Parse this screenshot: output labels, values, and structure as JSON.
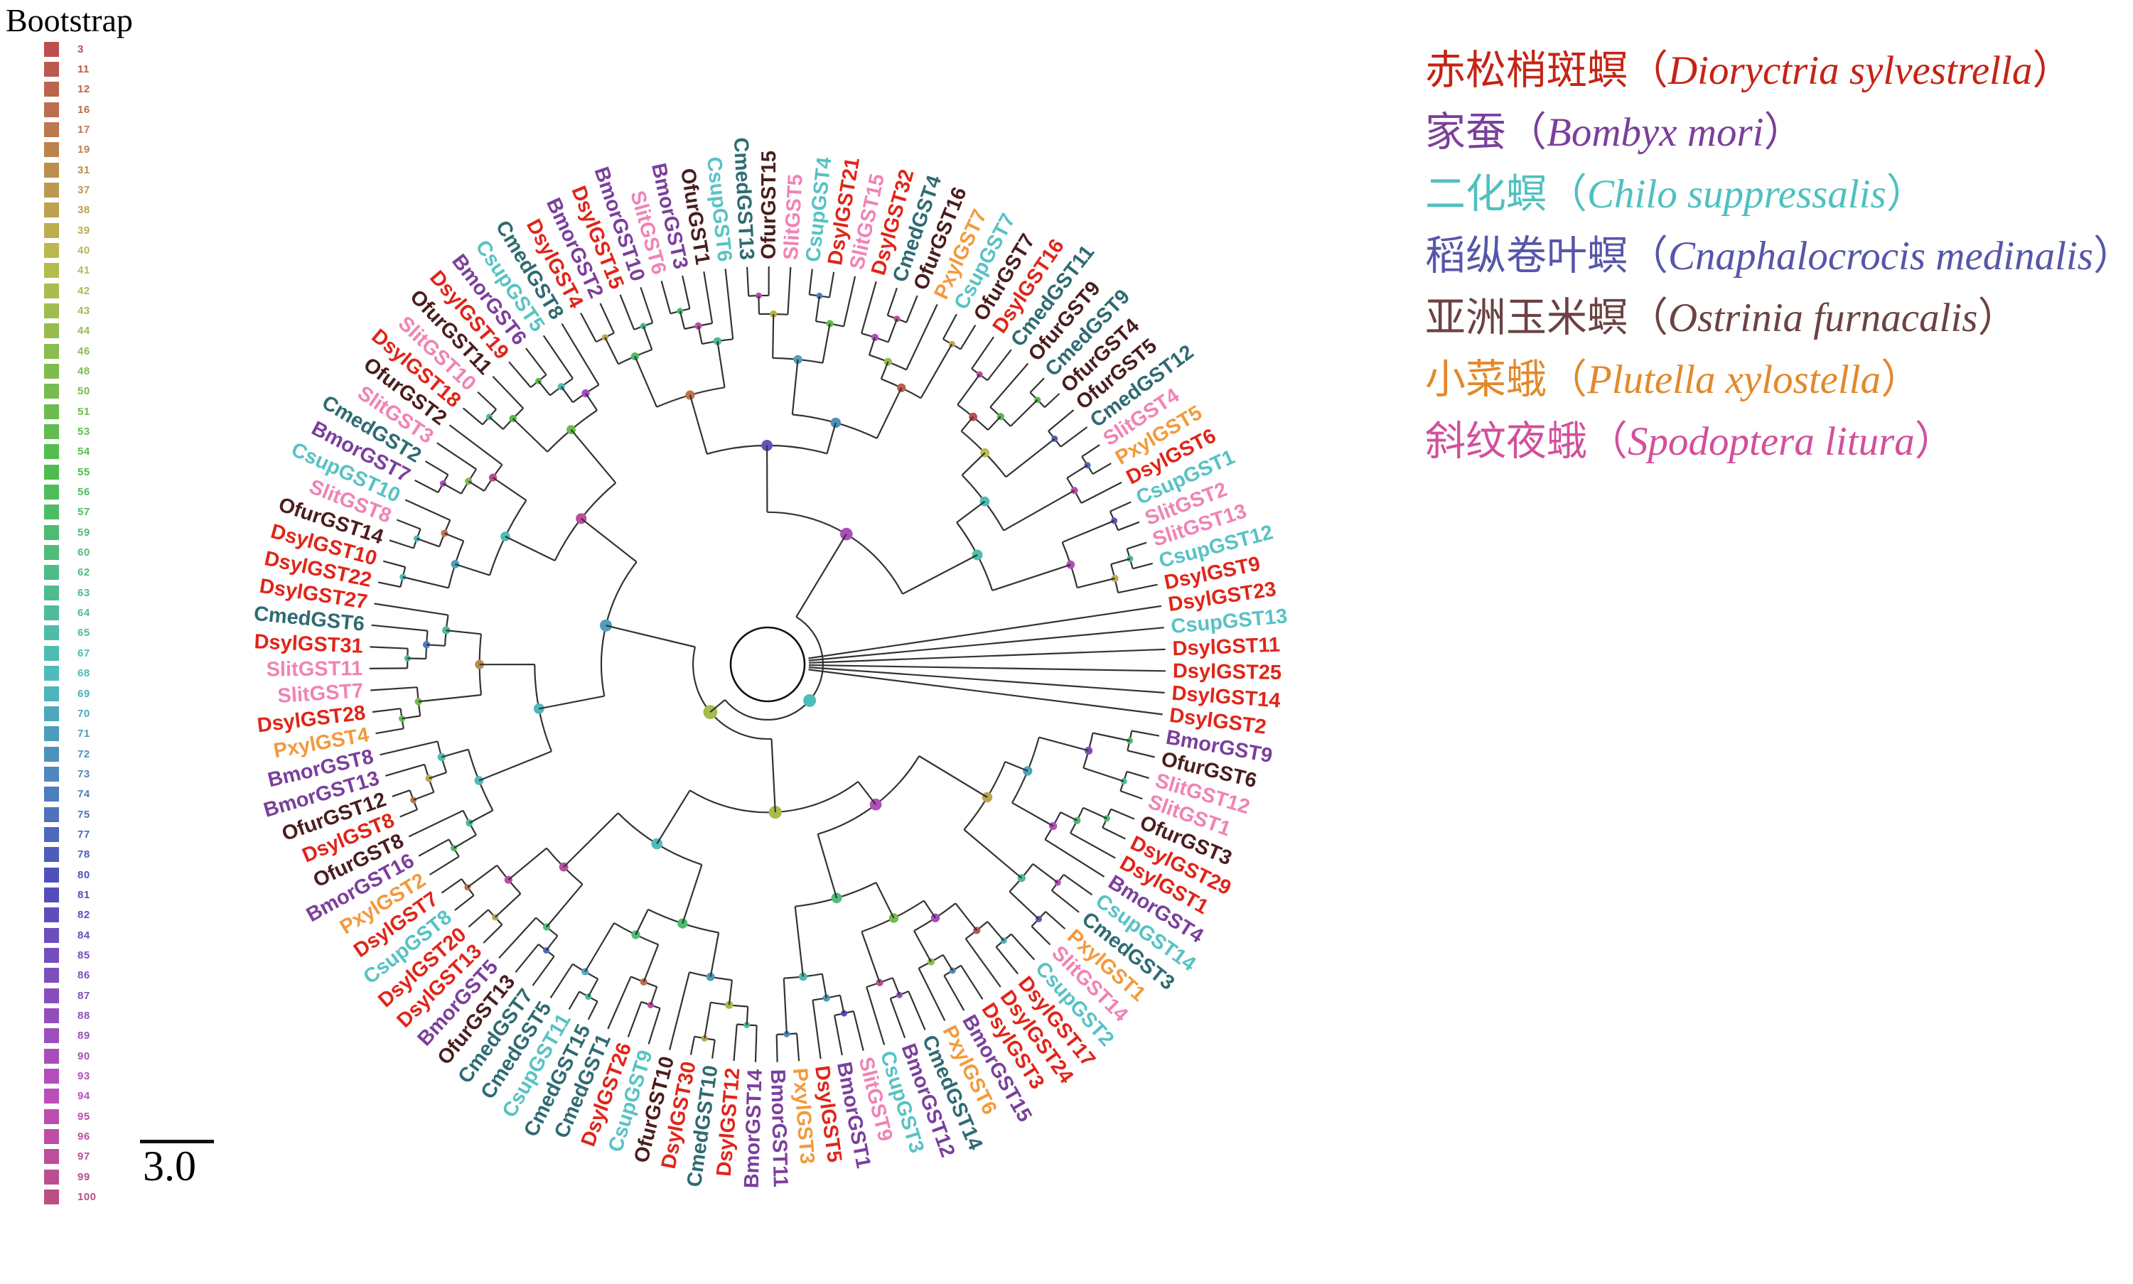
{
  "title": "Bootstrap",
  "bootstrap_legend": {
    "values": [
      3,
      11,
      12,
      16,
      17,
      19,
      31,
      37,
      38,
      39,
      40,
      41,
      42,
      43,
      44,
      46,
      48,
      50,
      51,
      53,
      54,
      55,
      56,
      57,
      59,
      60,
      62,
      63,
      64,
      65,
      67,
      68,
      69,
      70,
      71,
      72,
      73,
      74,
      75,
      77,
      78,
      80,
      81,
      82,
      84,
      85,
      86,
      87,
      88,
      89,
      90,
      93,
      94,
      95,
      96,
      97,
      99,
      100
    ]
  },
  "scale_bar": {
    "label": "3.0"
  },
  "species_legend": [
    {
      "cn": "赤松梢斑螟",
      "latin": "Dioryctria sylvestrella",
      "color": "#c42415"
    },
    {
      "cn": "家蚕",
      "latin": "Bombyx mori",
      "color": "#7b3f9a"
    },
    {
      "cn": "二化螟",
      "latin": "Chilo suppressalis",
      "color": "#4fc0c0"
    },
    {
      "cn": "稻纵卷叶螟",
      "latin": "Cnaphalocrocis medinalis",
      "color": "#5656a8"
    },
    {
      "cn": "亚洲玉米螟",
      "latin": "Ostrinia furnacalis",
      "color": "#6b4242"
    },
    {
      "cn": "小菜蛾",
      "latin": "Plutella xylostella",
      "color": "#e2892b"
    },
    {
      "cn": "斜纹夜蛾",
      "latin": "Spodoptera litura",
      "color": "#d1509c"
    }
  ],
  "tree": {
    "species_colors": {
      "Dsyl": "#e02519",
      "Bmor": "#7b3f9c",
      "Csup": "#58c2c4",
      "Cmed": "#2e6b72",
      "Ofur": "#4a1d1d",
      "Pxyl": "#f29a3d",
      "Slit": "#f083b4"
    },
    "leaves": [
      "DsylGST4",
      "BmorGST2",
      "DsylGST15",
      "BmorGST10",
      "SlitGST6",
      "BmorGST3",
      "OfurGST1",
      "CsupGST6",
      "CmedGST13",
      "OfurGST15",
      "SlitGST5",
      "CsupGST4",
      "DsylGST21",
      "SlitGST15",
      "DsylGST32",
      "CmedGST4",
      "OfurGST16",
      "PxylGST7",
      "CsupGST7",
      "OfurGST7",
      "DsylGST16",
      "CmedGST11",
      "OfurGST9",
      "CmedGST9",
      "OfurGST4",
      "OfurGST5",
      "CmedGST12",
      "SlitGST4",
      "PxylGST5",
      "DsylGST6",
      "CsupGST1",
      "SlitGST2",
      "SlitGST13",
      "CsupGST12",
      "DsylGST9",
      "DsylGST23",
      "CsupGST13",
      "DsylGST11",
      "DsylGST25",
      "DsylGST14",
      "DsylGST2",
      "BmorGST9",
      "OfurGST6",
      "SlitGST12",
      "SlitGST1",
      "OfurGST3",
      "DsylGST29",
      "DsylGST1",
      "BmorGST4",
      "CsupGST14",
      "CmedGST3",
      "PxylGST1",
      "SlitGST14",
      "CsupGST2",
      "DsylGST17",
      "DsylGST24",
      "DsylGST3",
      "BmorGST15",
      "PxylGST6",
      "CmedGST14",
      "BmorGST12",
      "CsupGST3",
      "SlitGST9",
      "BmorGST1",
      "DsylGST5",
      "PxylGST3",
      "BmorGST11",
      "BmorGST14",
      "DsylGST12",
      "CmedGST10",
      "DsylGST30",
      "OfurGST10",
      "CsupGST9",
      "DsylGST26",
      "CmedGST1",
      "CmedGST15",
      "CsupGST11",
      "CmedGST5",
      "CmedGST7",
      "OfurGST13",
      "BmorGST5",
      "DsylGST13",
      "DsylGST20",
      "CsupGST8",
      "DsylGST7",
      "PxylGST2",
      "BmorGST16",
      "OfurGST8",
      "DsylGST8",
      "OfurGST12",
      "BmorGST13",
      "BmorGST8",
      "PxylGST4",
      "DsylGST28",
      "SlitGST7",
      "SlitGST11",
      "DsylGST31",
      "CmedGST6",
      "DsylGST27",
      "DsylGST22",
      "DsylGST10",
      "OfurGST14",
      "SlitGST8",
      "CsupGST10",
      "BmorGST7",
      "CmedGST2",
      "SlitGST3",
      "OfurGST2",
      "DsylGST18",
      "SlitGST10",
      "OfurGST11",
      "DsylGST19",
      "BmorGST6",
      "CsupGST5",
      "CmedGST8"
    ],
    "fan_leaf_indices": [
      35,
      36,
      37,
      38,
      39,
      40
    ],
    "start_angle_deg": 118,
    "branch_color": "#333333"
  }
}
